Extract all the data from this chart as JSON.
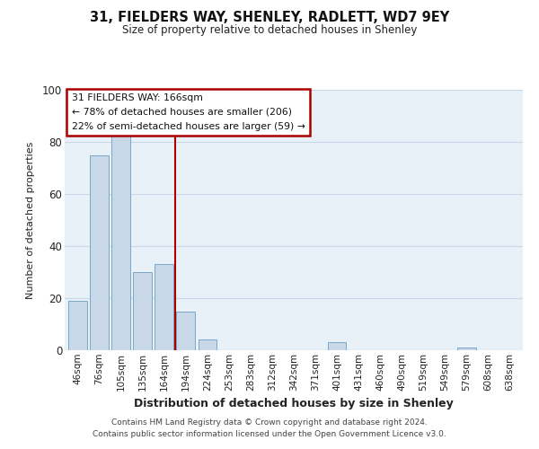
{
  "title": "31, FIELDERS WAY, SHENLEY, RADLETT, WD7 9EY",
  "subtitle": "Size of property relative to detached houses in Shenley",
  "xlabel": "Distribution of detached houses by size in Shenley",
  "ylabel": "Number of detached properties",
  "footer_line1": "Contains HM Land Registry data © Crown copyright and database right 2024.",
  "footer_line2": "Contains public sector information licensed under the Open Government Licence v3.0.",
  "bin_labels": [
    "46sqm",
    "76sqm",
    "105sqm",
    "135sqm",
    "164sqm",
    "194sqm",
    "224sqm",
    "253sqm",
    "283sqm",
    "312sqm",
    "342sqm",
    "371sqm",
    "401sqm",
    "431sqm",
    "460sqm",
    "490sqm",
    "519sqm",
    "549sqm",
    "579sqm",
    "608sqm",
    "638sqm"
  ],
  "bar_values": [
    19,
    75,
    84,
    30,
    33,
    15,
    4,
    0,
    0,
    0,
    0,
    0,
    3,
    0,
    0,
    0,
    0,
    0,
    1,
    0,
    0
  ],
  "bar_color": "#c8d8e8",
  "bar_edge_color": "#7aa8c8",
  "highlight_line_color": "#aa0000",
  "annotation_title": "31 FIELDERS WAY: 166sqm",
  "annotation_line1": "← 78% of detached houses are smaller (206)",
  "annotation_line2": "22% of semi-detached houses are larger (59) →",
  "annotation_box_color": "#ffffff",
  "annotation_box_edge_color": "#aa0000",
  "ylim": [
    0,
    100
  ],
  "yticks": [
    0,
    20,
    40,
    60,
    80,
    100
  ],
  "grid_color": "#c8d8e8",
  "bg_color": "#e8f0f8"
}
